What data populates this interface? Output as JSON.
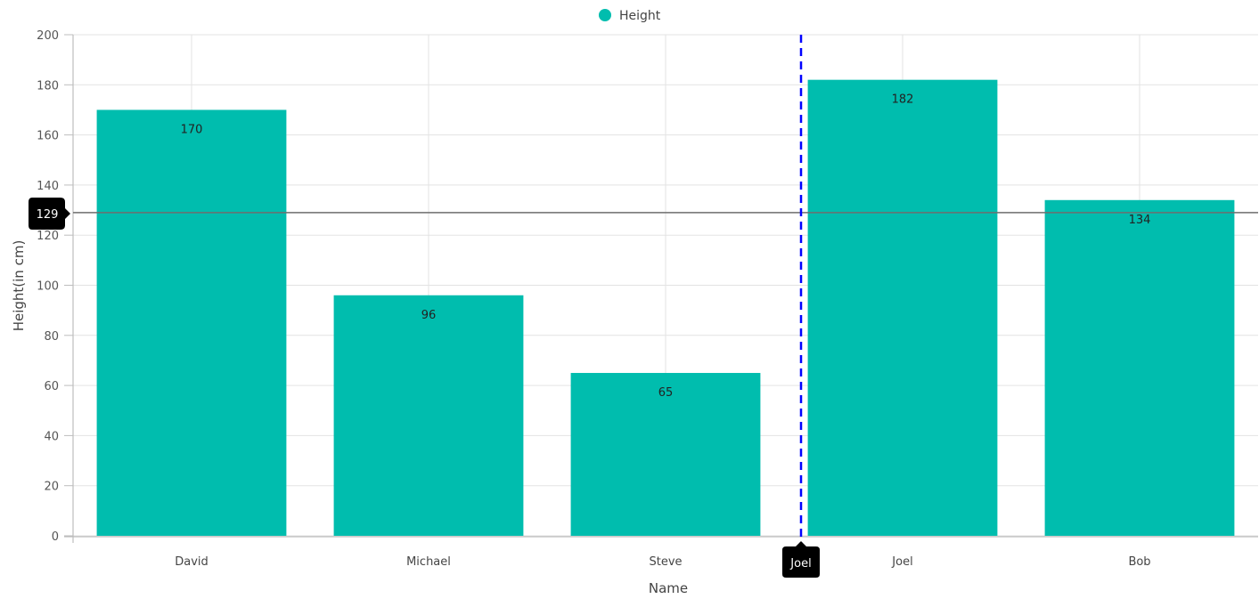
{
  "legend": {
    "label": "Height",
    "color": "#00BDAE"
  },
  "chart_data": {
    "type": "bar",
    "categories": [
      "David",
      "Michael",
      "Steve",
      "Joel",
      "Bob"
    ],
    "series": [
      {
        "name": "Height",
        "values": [
          170,
          96,
          65,
          182,
          134
        ],
        "color": "#00BDAE"
      }
    ],
    "data_labels": [
      "170",
      "96",
      "65",
      "182",
      "134"
    ],
    "xlabel": "Name",
    "ylabel": "Height(in cm)",
    "ylim": [
      0,
      200
    ],
    "yticks": [
      0,
      20,
      40,
      60,
      80,
      100,
      120,
      140,
      160,
      180,
      200
    ],
    "grid": true,
    "legend_position": "top-center"
  },
  "crosshair": {
    "y_value": 129,
    "y_label": "129",
    "x_category": "Joel",
    "x_label": "Joel",
    "x_line_color": "#0000FF"
  }
}
